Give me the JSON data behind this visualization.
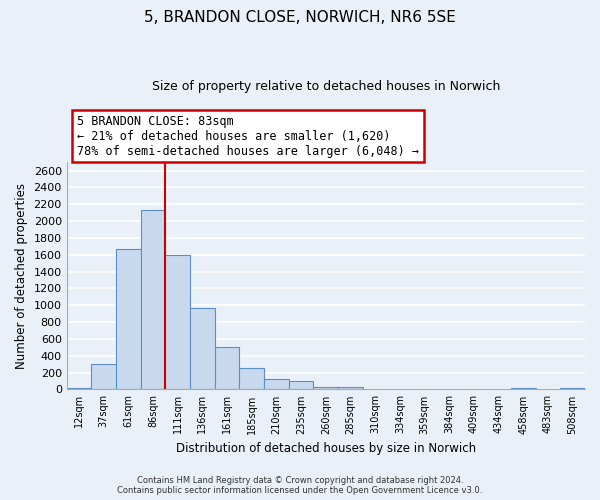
{
  "title": "5, BRANDON CLOSE, NORWICH, NR6 5SE",
  "subtitle": "Size of property relative to detached houses in Norwich",
  "xlabel": "Distribution of detached houses by size in Norwich",
  "ylabel": "Number of detached properties",
  "bar_labels": [
    "12sqm",
    "37sqm",
    "61sqm",
    "86sqm",
    "111sqm",
    "136sqm",
    "161sqm",
    "185sqm",
    "210sqm",
    "235sqm",
    "260sqm",
    "285sqm",
    "310sqm",
    "334sqm",
    "359sqm",
    "384sqm",
    "409sqm",
    "434sqm",
    "458sqm",
    "483sqm",
    "508sqm"
  ],
  "bar_values": [
    20,
    300,
    1670,
    2130,
    1600,
    970,
    510,
    255,
    120,
    95,
    30,
    30,
    5,
    5,
    5,
    5,
    5,
    5,
    20,
    5,
    20
  ],
  "bar_color": "#c9d9ed",
  "bar_edge_color": "#5b8fc9",
  "background_color": "#eaf0f8",
  "grid_color": "#ffffff",
  "red_line_bar_index": 3,
  "annotation_text": "5 BRANDON CLOSE: 83sqm\n← 21% of detached houses are smaller (1,620)\n78% of semi-detached houses are larger (6,048) →",
  "annotation_box_color": "#ffffff",
  "annotation_box_edge": "#cc0000",
  "ylim": [
    0,
    2700
  ],
  "yticks": [
    0,
    200,
    400,
    600,
    800,
    1000,
    1200,
    1400,
    1600,
    1800,
    2000,
    2200,
    2400,
    2600
  ],
  "footnote1": "Contains HM Land Registry data © Crown copyright and database right 2024.",
  "footnote2": "Contains public sector information licensed under the Open Government Licence v3.0."
}
